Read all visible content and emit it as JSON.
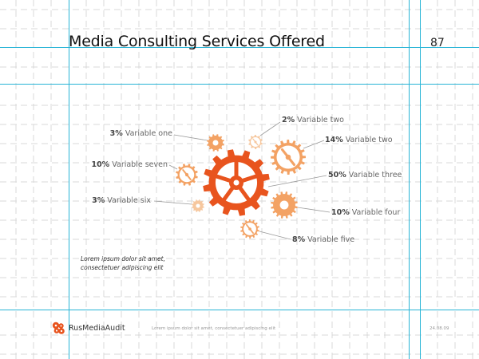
{
  "slide": {
    "title": "Media Consulting Services Offered",
    "page_number": "87"
  },
  "diagram": {
    "accent_color": "#e8541e",
    "light_color": "#f3a264",
    "pale_color": "#f6c79e",
    "items": [
      {
        "percent": "3%",
        "label": "Variable one",
        "color": "#f3a264",
        "style": "solid"
      },
      {
        "percent": "2%",
        "label": "Variable two",
        "color": "#f6c79e",
        "style": "outline"
      },
      {
        "percent": "14%",
        "label": "Variable two",
        "color": "#f3a264",
        "style": "outline"
      },
      {
        "percent": "10%",
        "label": "Variable seven",
        "color": "#f3a264",
        "style": "outline"
      },
      {
        "percent": "50%",
        "label": "Variable three",
        "color": "#e8541e",
        "style": "main"
      },
      {
        "percent": "3%",
        "label": "Variable six",
        "color": "#f6c79e",
        "style": "solid"
      },
      {
        "percent": "10%",
        "label": "Variable four",
        "color": "#f3a264",
        "style": "solid"
      },
      {
        "percent": "8%",
        "label": "Variable five",
        "color": "#f3a264",
        "style": "outline"
      }
    ]
  },
  "note": {
    "line1": "Lorem ipsum dolor sit amet,",
    "line2": "consectetuer adipiscing elit"
  },
  "footer": {
    "brand": "RusMediaAudit",
    "text": "Lorem ipsum dolor sit amet, consectetuer adipiscing elit",
    "date": "24.08.09",
    "logo_icon": "gear-cluster-logo-icon"
  }
}
